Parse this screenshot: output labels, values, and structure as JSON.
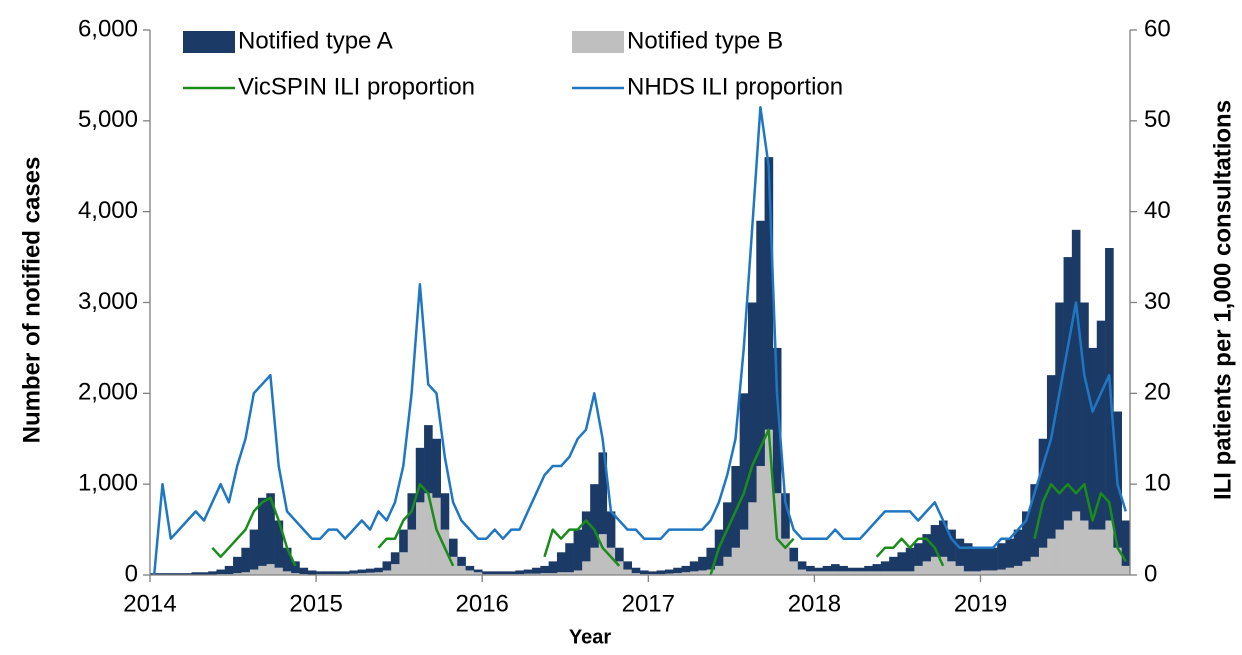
{
  "chart_data": {
    "type": "combo",
    "y_label": "Number of notified cases",
    "y2_label": "ILI patients per 1,000 consultations",
    "x_label": "Year",
    "xlim": [
      2014,
      2019.9
    ],
    "xticks": [
      2014,
      2015,
      2016,
      2017,
      2018,
      2019
    ],
    "ylim": [
      0,
      6000
    ],
    "yticks": [
      0,
      {
        "value": 1000,
        "label": "1,000"
      },
      {
        "value": 2000,
        "label": "2,000"
      },
      {
        "value": 3000,
        "label": "3,000"
      },
      {
        "value": 4000,
        "label": "4,000"
      },
      {
        "value": 5000,
        "label": "5,000"
      },
      {
        "value": 6000,
        "label": "6,000"
      }
    ],
    "y2lim": [
      0,
      60
    ],
    "y2ticks": [
      0,
      10,
      20,
      30,
      40,
      50,
      60
    ],
    "stacked": true,
    "x": [
      2014,
      2014.05,
      2014.1,
      2014.15,
      2014.2,
      2014.25,
      2014.3,
      2014.35,
      2014.4,
      2014.45,
      2014.5,
      2014.55,
      2014.6,
      2014.65,
      2014.7,
      2014.75,
      2014.8,
      2014.85,
      2014.9,
      2014.95,
      2015,
      2015.05,
      2015.1,
      2015.15,
      2015.2,
      2015.25,
      2015.3,
      2015.35,
      2015.4,
      2015.45,
      2015.5,
      2015.55,
      2015.6,
      2015.65,
      2015.7,
      2015.75,
      2015.8,
      2015.85,
      2015.9,
      2015.95,
      2016,
      2016.05,
      2016.1,
      2016.15,
      2016.2,
      2016.25,
      2016.3,
      2016.35,
      2016.4,
      2016.45,
      2016.5,
      2016.55,
      2016.6,
      2016.65,
      2016.7,
      2016.75,
      2016.8,
      2016.85,
      2016.9,
      2016.95,
      2017,
      2017.05,
      2017.1,
      2017.15,
      2017.2,
      2017.25,
      2017.3,
      2017.35,
      2017.4,
      2017.45,
      2017.5,
      2017.55,
      2017.6,
      2017.65,
      2017.7,
      2017.75,
      2017.8,
      2017.85,
      2017.9,
      2017.95,
      2018,
      2018.05,
      2018.1,
      2018.15,
      2018.2,
      2018.25,
      2018.3,
      2018.35,
      2018.4,
      2018.45,
      2018.5,
      2018.55,
      2018.6,
      2018.65,
      2018.7,
      2018.75,
      2018.8,
      2018.85,
      2018.9,
      2018.95,
      2019,
      2019.05,
      2019.1,
      2019.15,
      2019.2,
      2019.25,
      2019.3,
      2019.35,
      2019.4,
      2019.45,
      2019.5,
      2019.55,
      2019.6,
      2019.65,
      2019.7,
      2019.75,
      2019.8,
      2019.85
    ],
    "series": [
      {
        "name": "Notified type B",
        "type": "bar",
        "color": "#bfbfbf",
        "values": [
          5,
          5,
          5,
          5,
          5,
          5,
          5,
          5,
          10,
          10,
          20,
          30,
          60,
          100,
          120,
          80,
          40,
          20,
          10,
          5,
          10,
          10,
          10,
          10,
          15,
          20,
          25,
          30,
          50,
          120,
          250,
          500,
          800,
          900,
          850,
          500,
          200,
          100,
          50,
          30,
          10,
          10,
          10,
          10,
          10,
          15,
          15,
          20,
          20,
          30,
          30,
          50,
          150,
          300,
          450,
          300,
          150,
          60,
          20,
          10,
          10,
          10,
          15,
          20,
          30,
          40,
          50,
          60,
          100,
          200,
          300,
          500,
          800,
          1200,
          1600,
          900,
          400,
          150,
          60,
          40,
          40,
          40,
          40,
          40,
          40,
          40,
          40,
          40,
          40,
          40,
          40,
          40,
          100,
          150,
          200,
          200,
          150,
          100,
          40,
          40,
          50,
          50,
          60,
          80,
          100,
          150,
          200,
          300,
          400,
          500,
          600,
          700,
          600,
          500,
          500,
          600,
          300,
          100
        ]
      },
      {
        "name": "Notified type A",
        "type": "bar",
        "color": "#1b3a66",
        "values": [
          15,
          15,
          15,
          15,
          15,
          25,
          25,
          35,
          50,
          90,
          180,
          270,
          440,
          750,
          780,
          520,
          260,
          130,
          70,
          45,
          30,
          30,
          30,
          30,
          35,
          40,
          45,
          50,
          100,
          130,
          250,
          400,
          600,
          750,
          650,
          400,
          200,
          100,
          50,
          30,
          30,
          30,
          30,
          30,
          40,
          45,
          65,
          80,
          130,
          220,
          320,
          450,
          550,
          700,
          900,
          400,
          150,
          90,
          60,
          40,
          30,
          40,
          45,
          60,
          70,
          110,
          150,
          240,
          400,
          600,
          900,
          1500,
          2200,
          2700,
          3000,
          1600,
          500,
          150,
          90,
          60,
          40,
          60,
          80,
          60,
          40,
          40,
          60,
          80,
          110,
          160,
          210,
          260,
          250,
          300,
          350,
          400,
          350,
          300,
          310,
          260,
          250,
          250,
          290,
          320,
          400,
          550,
          800,
          1200,
          1800,
          2500,
          2900,
          3100,
          2400,
          2000,
          2300,
          3000,
          1500,
          500
        ]
      },
      {
        "name": "VicSPIN ILI proportion",
        "type": "line",
        "axis": "y2",
        "color": "#1a8c1a",
        "values": [
          null,
          null,
          null,
          null,
          null,
          null,
          null,
          3,
          2,
          3,
          4,
          5,
          7,
          8,
          8.5,
          6,
          3,
          1,
          null,
          null,
          null,
          null,
          null,
          null,
          null,
          null,
          null,
          3,
          4,
          4,
          6,
          7,
          10,
          9,
          5,
          3,
          1,
          null,
          null,
          null,
          null,
          null,
          null,
          null,
          null,
          null,
          null,
          2,
          5,
          4,
          5,
          5,
          6,
          5,
          3,
          2,
          1,
          null,
          null,
          null,
          null,
          null,
          null,
          null,
          null,
          null,
          null,
          0,
          3,
          5,
          7,
          9,
          12,
          14,
          16,
          4,
          3,
          4,
          null,
          null,
          null,
          null,
          null,
          null,
          null,
          null,
          null,
          2,
          3,
          3,
          4,
          3,
          4,
          4,
          3,
          1,
          null,
          null,
          null,
          null,
          null,
          null,
          null,
          null,
          null,
          null,
          4,
          8,
          10,
          9,
          10,
          9,
          10,
          6,
          9,
          8,
          3,
          1.5
        ]
      },
      {
        "name": "NHDS ILI proportion",
        "type": "line",
        "axis": "y2",
        "color": "#1f77c4",
        "values": [
          0,
          10,
          4,
          5,
          6,
          7,
          6,
          8,
          10,
          8,
          12,
          15,
          20,
          21,
          22,
          12,
          7,
          6,
          5,
          4,
          4,
          5,
          5,
          4,
          5,
          6,
          5,
          7,
          6,
          8,
          12,
          20,
          32,
          21,
          20,
          13,
          8,
          6,
          5,
          4,
          4,
          5,
          4,
          5,
          5,
          7,
          9,
          11,
          12,
          12,
          13,
          15,
          16,
          20,
          15,
          7,
          6,
          5,
          5,
          4,
          4,
          4,
          5,
          5,
          5,
          5,
          5,
          6,
          8,
          11,
          15,
          25,
          38,
          51.5,
          45,
          20,
          8,
          5,
          4,
          4,
          4,
          4,
          5,
          4,
          4,
          4,
          5,
          6,
          7,
          7,
          7,
          7,
          6,
          7,
          8,
          6,
          4,
          3,
          3,
          3,
          3,
          3,
          4,
          4,
          5,
          6,
          9,
          12,
          15,
          20,
          25,
          30,
          22,
          18,
          20,
          22,
          10,
          7
        ]
      }
    ]
  }
}
